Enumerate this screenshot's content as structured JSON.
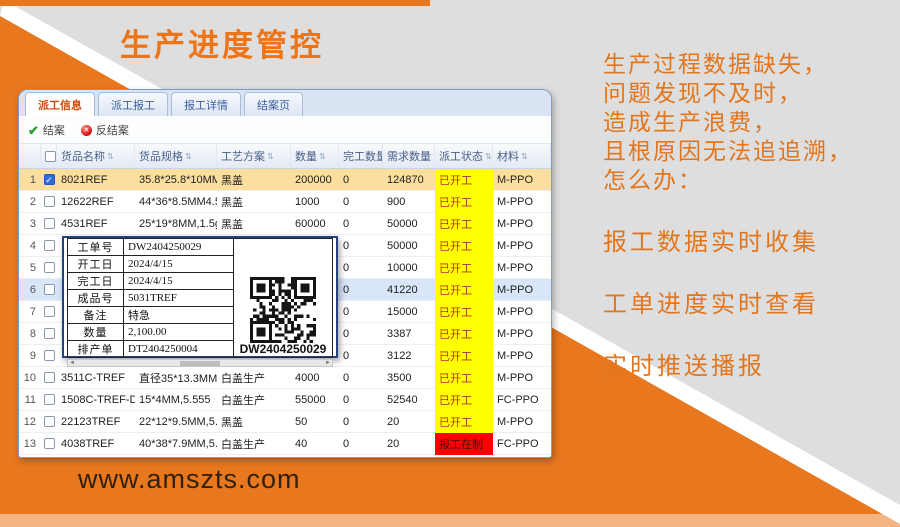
{
  "slide": {
    "title": "生产进度管控",
    "website": "www.amszts.com",
    "problem_lines": [
      "生产过程数据缺失，",
      "问题发现不及时，",
      "造成生产浪费，",
      "且根原因无法追追溯，",
      "怎么办："
    ],
    "solution_lines": [
      "报工数据实时收集",
      "工单进度实时查看",
      "实时推送播报"
    ],
    "colors": {
      "accent_orange": "#e8771e",
      "background_gray": "#dedede",
      "status_yellow": "#ffff00",
      "status_red": "#ff0000"
    }
  },
  "ui": {
    "check_glyph": "✓",
    "toolbar_check_glyph": "✔",
    "cancel_glyph": "✕",
    "sort_glyph": "⇅",
    "scroll_left_glyph": "◄",
    "scroll_right_glyph": "►"
  },
  "app": {
    "tabs": [
      {
        "id": "dispatch-info",
        "label": "派工信息",
        "active": true
      },
      {
        "id": "dispatch-report",
        "label": "派工报工",
        "active": false
      },
      {
        "id": "report-detail",
        "label": "报工详情",
        "active": false
      },
      {
        "id": "close-page",
        "label": "结案页",
        "active": false
      }
    ],
    "toolbar": [
      {
        "id": "close-case",
        "label": "结案",
        "icon": "check-icon"
      },
      {
        "id": "reverse-close-case",
        "label": "反结案",
        "icon": "reverse-close-icon"
      }
    ],
    "table": {
      "headers": [
        "货品名称",
        "货品规格",
        "工艺方案",
        "数量",
        "完工数量",
        "需求数量",
        "派工状态",
        "材料"
      ],
      "rows": [
        {
          "idx": 1,
          "checked": true,
          "selected": true,
          "highlight": false,
          "name": "8021REF",
          "spec": "35.8*25.8*10MM ,2.8g",
          "process": "黑盖",
          "qty": "200000",
          "done": "0",
          "demand": "124870",
          "status": "已开工",
          "status_type": "started",
          "material": "M-PPO"
        },
        {
          "idx": 2,
          "checked": false,
          "selected": false,
          "highlight": false,
          "name": "12622REF",
          "spec": "44*36*8.5MM4.52g",
          "process": "黑盖",
          "qty": "1000",
          "done": "0",
          "demand": "900",
          "status": "已开工",
          "status_type": "started",
          "material": "M-PPO"
        },
        {
          "idx": 3,
          "checked": false,
          "selected": false,
          "highlight": false,
          "name": "4531REF",
          "spec": "25*19*8MM,1.5g",
          "process": "黑盖",
          "qty": "60000",
          "done": "0",
          "demand": "50000",
          "status": "已开工",
          "status_type": "started",
          "material": "M-PPO"
        },
        {
          "idx": 4,
          "checked": false,
          "selected": false,
          "highlight": false,
          "name": "",
          "spec": "",
          "process": "",
          "qty": "",
          "done": "0",
          "demand": "50000",
          "status": "已开工",
          "status_type": "started",
          "material": "M-PPO"
        },
        {
          "idx": 5,
          "checked": false,
          "selected": false,
          "highlight": false,
          "name": "",
          "spec": "",
          "process": "",
          "qty": "",
          "done": "0",
          "demand": "10000",
          "status": "已开工",
          "status_type": "started",
          "material": "M-PPO"
        },
        {
          "idx": 6,
          "checked": false,
          "selected": false,
          "highlight": true,
          "name": "",
          "spec": "",
          "process": "",
          "qty": "",
          "done": "0",
          "demand": "41220",
          "status": "已开工",
          "status_type": "started",
          "material": "M-PPO"
        },
        {
          "idx": 7,
          "checked": false,
          "selected": false,
          "highlight": false,
          "name": "",
          "spec": "",
          "process": "",
          "qty": "",
          "done": "0",
          "demand": "15000",
          "status": "已开工",
          "status_type": "started",
          "material": "M-PPO"
        },
        {
          "idx": 8,
          "checked": false,
          "selected": false,
          "highlight": false,
          "name": "N",
          "spec": "",
          "process": "",
          "qty": "",
          "done": "0",
          "demand": "3387",
          "status": "已开工",
          "status_type": "started",
          "material": "M-PPO"
        },
        {
          "idx": 9,
          "checked": false,
          "selected": false,
          "highlight": false,
          "name": "",
          "spec": "",
          "process": "",
          "qty": "",
          "done": "0",
          "demand": "3122",
          "status": "已开工",
          "status_type": "started",
          "material": "M-PPO"
        },
        {
          "idx": 10,
          "checked": false,
          "selected": false,
          "highlight": false,
          "name": "3511C-TREF",
          "spec": "直径35*13.3MM*3.9",
          "process": "白盖生产",
          "qty": "4000",
          "done": "0",
          "demand": "3500",
          "status": "已开工",
          "status_type": "started",
          "material": "M-PPO"
        },
        {
          "idx": 11,
          "checked": false,
          "selected": false,
          "highlight": false,
          "name": "1508C-TREF-D",
          "spec": "15*4MM,5.555",
          "process": "白盖生产",
          "qty": "55000",
          "done": "0",
          "demand": "52540",
          "status": "已开工",
          "status_type": "started",
          "material": "FC-PPO"
        },
        {
          "idx": 12,
          "checked": false,
          "selected": false,
          "highlight": false,
          "name": "22123TREF",
          "spec": "22*12*9.5MM,5.555",
          "process": "黑盖",
          "qty": "50",
          "done": "0",
          "demand": "20",
          "status": "已开工",
          "status_type": "started",
          "material": "M-PPO"
        },
        {
          "idx": 13,
          "checked": false,
          "selected": false,
          "highlight": false,
          "name": "4038TREF",
          "spec": "40*38*7.9MM,5.555",
          "process": "白盖生产",
          "qty": "40",
          "done": "0",
          "demand": "20",
          "status": "报工在制",
          "status_type": "alert",
          "material": "FC-PPO"
        }
      ]
    },
    "popup": {
      "fields": [
        {
          "label": "工单号",
          "value": "DW2404250029"
        },
        {
          "label": "开工日",
          "value": "2024/4/15"
        },
        {
          "label": "完工日",
          "value": "2024/4/15"
        },
        {
          "label": "成品号",
          "value": "5031TREF"
        },
        {
          "label": "备注",
          "value": "特急"
        },
        {
          "label": "数量",
          "value": "2,100.00"
        },
        {
          "label": "排产单",
          "value": "DT2404250004"
        }
      ],
      "qr_text": "DW2404250029"
    }
  }
}
